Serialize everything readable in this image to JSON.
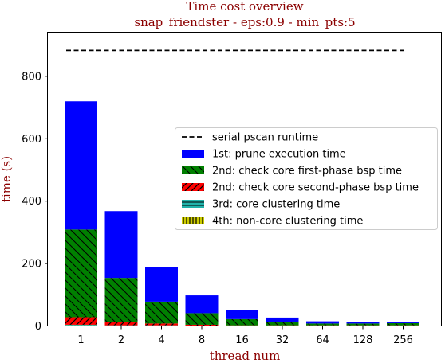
{
  "chart_data": {
    "type": "bar",
    "stacked": true,
    "title": "Time cost overview",
    "subtitle": "snap_friendster - eps:0.9 - min_pts:5",
    "xlabel": "thread num",
    "ylabel": "time (s)",
    "categories": [
      "1",
      "2",
      "4",
      "8",
      "16",
      "32",
      "64",
      "128",
      "256"
    ],
    "ylim": [
      0,
      940
    ],
    "yticks": [
      0,
      200,
      400,
      600,
      800
    ],
    "legend_position": "center-right",
    "serial_runtime": {
      "name": "serial pscan runtime",
      "value": 883,
      "color": "#000000",
      "style": "dashed"
    },
    "series": [
      {
        "name": "1st: prune execution time",
        "color": "#0000ff",
        "pattern": "none",
        "values": [
          411,
          214,
          111,
          57,
          28,
          14,
          7,
          5,
          4
        ]
      },
      {
        "name": "2nd: check core first-phase bsp time",
        "color": "#008000",
        "pattern": "diagonal-backslash",
        "values": [
          281,
          140,
          70,
          37,
          20,
          11,
          6,
          6,
          7
        ]
      },
      {
        "name": "2nd: check core second-phase bsp time",
        "color": "#ff0000",
        "pattern": "diagonal-slash",
        "values": [
          24,
          12,
          6,
          3,
          1,
          1,
          1,
          1,
          1
        ]
      },
      {
        "name": "3rd: core clustering time",
        "color": "#20b2aa",
        "pattern": "horizontal",
        "values": [
          2,
          1,
          1,
          0.5,
          0.5,
          0.5,
          0.5,
          0.5,
          0.5
        ]
      },
      {
        "name": "4th: non-core clustering time",
        "color": "#cccc00",
        "pattern": "vertical",
        "values": [
          2,
          1,
          1,
          0.5,
          0.5,
          0.5,
          0.5,
          0.5,
          0.5
        ]
      }
    ]
  }
}
